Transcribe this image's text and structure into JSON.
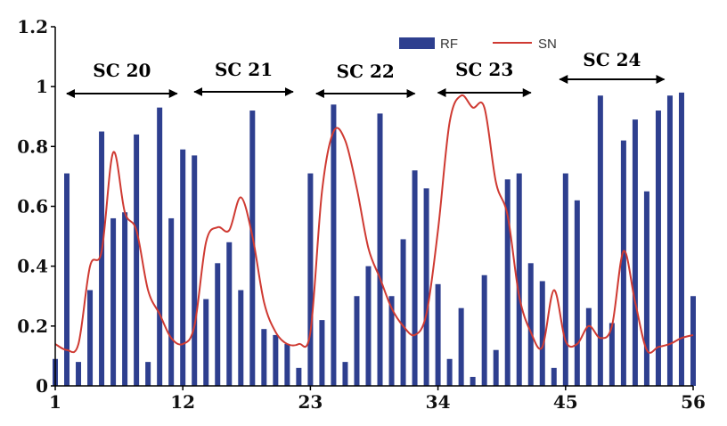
{
  "chart_data": {
    "type": "bar",
    "title": "",
    "xlabel": "",
    "ylabel": "",
    "ylim": [
      0,
      1.2
    ],
    "xlim": [
      1,
      56
    ],
    "y_ticks": [
      "0",
      "0.2",
      "0.4",
      "0.6",
      "0.8",
      "1",
      "1.2"
    ],
    "x_ticks": [
      "1",
      "12",
      "23",
      "34",
      "45",
      "56"
    ],
    "grid": false,
    "legend_placement": "top",
    "colors": {
      "bar": "#2e3f8f",
      "line": "#cf3a32"
    },
    "x": [
      1,
      2,
      3,
      4,
      5,
      6,
      7,
      8,
      9,
      10,
      11,
      12,
      13,
      14,
      15,
      16,
      17,
      18,
      19,
      20,
      21,
      22,
      23,
      24,
      25,
      26,
      27,
      28,
      29,
      30,
      31,
      32,
      33,
      34,
      35,
      36,
      37,
      38,
      39,
      40,
      41,
      42,
      43,
      44,
      45,
      46,
      47,
      48,
      49,
      50,
      51,
      52,
      53,
      54,
      55,
      56
    ],
    "series": [
      {
        "name": "RF",
        "type": "bar",
        "values": [
          0.09,
          0.71,
          0.08,
          0.32,
          0.85,
          0.56,
          0.58,
          0.84,
          0.08,
          0.93,
          0.56,
          0.79,
          0.77,
          0.29,
          0.41,
          0.48,
          0.32,
          0.92,
          0.19,
          0.17,
          0.14,
          0.06,
          0.71,
          0.22,
          0.94,
          0.08,
          0.3,
          0.4,
          0.91,
          0.3,
          0.49,
          0.72,
          0.66,
          0.34,
          0.09,
          0.26,
          0.03,
          0.37,
          0.12,
          0.69,
          0.71,
          0.41,
          0.35,
          0.06,
          0.71,
          0.62,
          0.26,
          0.97,
          0.21,
          0.82,
          0.89,
          0.65,
          0.92,
          0.97,
          0.98,
          0.3
        ]
      },
      {
        "name": "SN",
        "type": "line",
        "values": [
          0.14,
          0.12,
          0.14,
          0.4,
          0.45,
          0.78,
          0.58,
          0.52,
          0.32,
          0.24,
          0.16,
          0.14,
          0.2,
          0.48,
          0.53,
          0.52,
          0.63,
          0.5,
          0.28,
          0.18,
          0.14,
          0.14,
          0.18,
          0.65,
          0.85,
          0.82,
          0.66,
          0.46,
          0.36,
          0.26,
          0.2,
          0.17,
          0.24,
          0.52,
          0.88,
          0.97,
          0.93,
          0.93,
          0.68,
          0.57,
          0.3,
          0.18,
          0.13,
          0.32,
          0.15,
          0.14,
          0.2,
          0.16,
          0.2,
          0.45,
          0.28,
          0.12,
          0.13,
          0.14,
          0.16,
          0.17
        ]
      }
    ],
    "annotations": [
      {
        "label": "SC 20",
        "x_start": 2,
        "x_end": 11.5
      },
      {
        "label": "SC 21",
        "x_start": 13,
        "x_end": 21.5
      },
      {
        "label": "SC 22",
        "x_start": 23.5,
        "x_end": 32
      },
      {
        "label": "SC 23",
        "x_start": 34,
        "x_end": 42
      },
      {
        "label": "SC 24",
        "x_start": 44.5,
        "x_end": 53.5
      }
    ]
  }
}
